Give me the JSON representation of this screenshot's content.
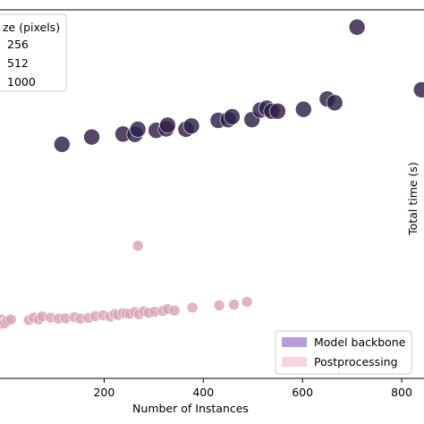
{
  "chart_data": {
    "type": "scatter",
    "xlabel": "Number of Instances",
    "ylabel": "Total time (s)",
    "xlim": [
      -10,
      845
    ],
    "ylim": [
      0,
      1
    ],
    "x_ticks": [
      200,
      400,
      600,
      800
    ],
    "grid": false,
    "size_legend": {
      "title": "ze (pixels)",
      "placement": "top-left",
      "entries": [
        "256",
        "512",
        "1000"
      ]
    },
    "color_legend": {
      "placement": "bottom-right",
      "entries": [
        {
          "label": "Model backbone",
          "color": "#b39ddb"
        },
        {
          "label": "Postprocessing",
          "color": "#fbd3dc"
        }
      ]
    },
    "series": [
      {
        "name": "Model backbone",
        "color": "#2e1e45",
        "points": [
          [
            115,
            0.635
          ],
          [
            175,
            0.655
          ],
          [
            238,
            0.663
          ],
          [
            262,
            0.662
          ],
          [
            268,
            0.676
          ],
          [
            305,
            0.673
          ],
          [
            325,
            0.677
          ],
          [
            328,
            0.687
          ],
          [
            365,
            0.676
          ],
          [
            376,
            0.685
          ],
          [
            430,
            0.7
          ],
          [
            450,
            0.702
          ],
          [
            458,
            0.71
          ],
          [
            498,
            0.702
          ],
          [
            515,
            0.728
          ],
          [
            528,
            0.733
          ],
          [
            538,
            0.725
          ],
          [
            550,
            0.725
          ],
          [
            602,
            0.73
          ],
          [
            650,
            0.758
          ],
          [
            665,
            0.748
          ],
          [
            710,
            0.953
          ],
          [
            840,
            0.783
          ]
        ]
      },
      {
        "name": "Postprocessing",
        "color": "#d9a3b5",
        "points": [
          [
            -8,
            0.16
          ],
          [
            -5,
            0.148
          ],
          [
            0,
            0.15
          ],
          [
            5,
            0.156
          ],
          [
            12,
            0.16
          ],
          [
            48,
            0.158
          ],
          [
            58,
            0.165
          ],
          [
            68,
            0.16
          ],
          [
            75,
            0.168
          ],
          [
            92,
            0.165
          ],
          [
            108,
            0.162
          ],
          [
            122,
            0.163
          ],
          [
            140,
            0.166
          ],
          [
            152,
            0.162
          ],
          [
            168,
            0.164
          ],
          [
            182,
            0.169
          ],
          [
            198,
            0.171
          ],
          [
            212,
            0.168
          ],
          [
            222,
            0.175
          ],
          [
            228,
            0.172
          ],
          [
            238,
            0.177
          ],
          [
            245,
            0.176
          ],
          [
            252,
            0.175
          ],
          [
            262,
            0.18
          ],
          [
            270,
            0.174
          ],
          [
            280,
            0.182
          ],
          [
            290,
            0.178
          ],
          [
            302,
            0.181
          ],
          [
            318,
            0.183
          ],
          [
            328,
            0.188
          ],
          [
            342,
            0.184
          ],
          [
            378,
            0.192
          ],
          [
            432,
            0.198
          ],
          [
            462,
            0.2
          ],
          [
            488,
            0.208
          ],
          [
            268,
            0.36
          ]
        ]
      }
    ]
  }
}
